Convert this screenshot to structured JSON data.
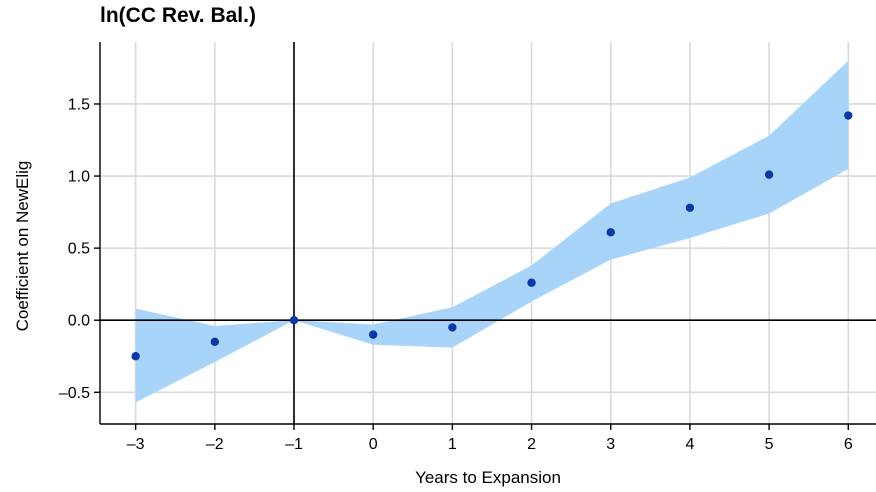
{
  "chart_data": {
    "type": "scatter",
    "title": "ln(CC Rev. Bal.)",
    "xlabel": "Years to Expansion",
    "ylabel": "Coefficient on NewElig",
    "x": [
      -3,
      -2,
      -1,
      0,
      1,
      2,
      3,
      4,
      5,
      6
    ],
    "xlim": [
      -3.45,
      6.35
    ],
    "ylim": [
      -0.72,
      1.93
    ],
    "xticks": [
      -3,
      -2,
      -1,
      0,
      1,
      2,
      3,
      4,
      5,
      6
    ],
    "xtick_labels": [
      "–3",
      "–2",
      "–1",
      "0",
      "1",
      "2",
      "3",
      "4",
      "5",
      "6"
    ],
    "yticks": [
      -0.5,
      0.0,
      0.5,
      1.0,
      1.5
    ],
    "ytick_labels": [
      "–0.5",
      "0.0",
      "0.5",
      "1.0",
      "1.5"
    ],
    "grid": true,
    "reference_lines": {
      "y": 0,
      "x": -1
    },
    "series": [
      {
        "values": [
          -0.25,
          -0.15,
          0.0,
          -0.1,
          -0.05,
          0.26,
          0.61,
          0.78,
          1.01,
          1.42
        ],
        "ci_lower": [
          -0.57,
          -0.29,
          0.0,
          -0.17,
          -0.19,
          0.13,
          0.42,
          0.57,
          0.74,
          1.05
        ],
        "ci_upper": [
          0.08,
          -0.04,
          0.0,
          -0.03,
          0.09,
          0.38,
          0.81,
          0.99,
          1.28,
          1.8
        ]
      }
    ],
    "colors": {
      "point": "#0a3aa8",
      "band": "#a8d4fa",
      "grid": "#d9d9d9",
      "axis": "#000000"
    }
  }
}
